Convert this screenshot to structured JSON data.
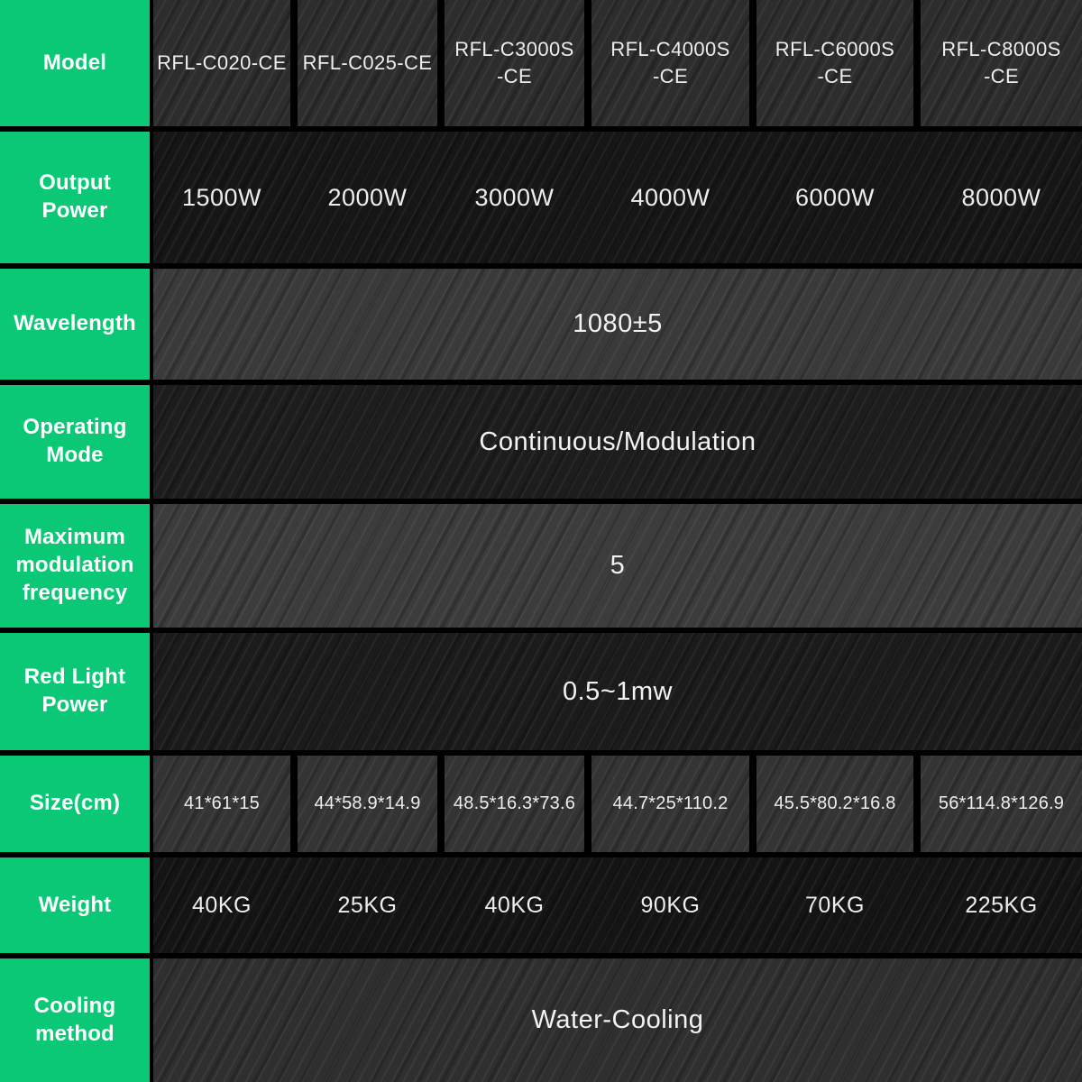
{
  "table": {
    "accent_color": "#0bc876",
    "data_text_color": "#ededed",
    "rows": {
      "model": {
        "label": "Model",
        "values": [
          "RFL-C020-CE",
          "RFL-C025-CE",
          "RFL-C3000S\n-CE",
          "RFL-C4000S\n-CE",
          "RFL-C6000S\n-CE",
          "RFL-C8000S\n-CE"
        ]
      },
      "output_power": {
        "label": "Output\nPower",
        "values": [
          "1500W",
          "2000W",
          "3000W",
          "4000W",
          "6000W",
          "8000W"
        ]
      },
      "wavelength": {
        "label": "Wavelength",
        "value": "1080±5"
      },
      "operating_mode": {
        "label": "Operating\nMode",
        "value": "Continuous/Modulation"
      },
      "max_modulation_frequency": {
        "label": "Maximum\nmodulation\nfrequency",
        "value": "5"
      },
      "red_light_power": {
        "label": "Red Light\nPower",
        "value": "0.5~1mw"
      },
      "size": {
        "label": "Size(cm)",
        "values": [
          "41*61*15",
          "44*58.9*14.9",
          "48.5*16.3*73.6",
          "44.7*25*110.2",
          "45.5*80.2*16.8",
          "56*114.8*126.9"
        ]
      },
      "weight": {
        "label": "Weight",
        "values": [
          "40KG",
          "25KG",
          "40KG",
          "90KG",
          "70KG",
          "225KG"
        ]
      },
      "cooling_method": {
        "label": "Cooling\nmethod",
        "value": "Water-Cooling"
      }
    }
  }
}
